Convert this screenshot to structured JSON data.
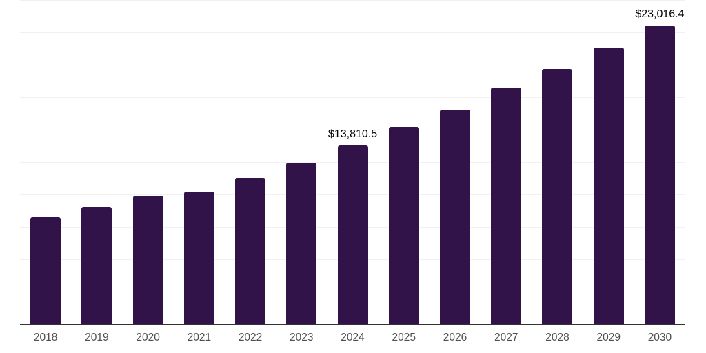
{
  "chart_data": {
    "type": "bar",
    "title": "",
    "xlabel": "",
    "ylabel": "",
    "categories": [
      "2018",
      "2019",
      "2020",
      "2021",
      "2022",
      "2023",
      "2024",
      "2025",
      "2026",
      "2027",
      "2028",
      "2029",
      "2030"
    ],
    "values": [
      8270,
      9055,
      9950,
      10270,
      11285,
      12485,
      13810.5,
      15210,
      16560,
      18235,
      19690,
      21360,
      23016.4
    ],
    "point_labels": [
      "",
      "",
      "",
      "",
      "",
      "",
      "$13,810.5",
      "",
      "",
      "",
      "",
      "",
      "$23,016.4"
    ],
    "ylim": [
      0,
      25000
    ],
    "gridline_step": 2500,
    "grid": "horizontal-only",
    "legend": "none",
    "y_axis_labels_shown": false,
    "colors": {
      "bar": "#311349",
      "gridline": "#f1f1f1",
      "axis_line": "#333333",
      "tick_label": "#4f4f4f",
      "value_label": "#000000",
      "background": "#ffffff"
    }
  }
}
